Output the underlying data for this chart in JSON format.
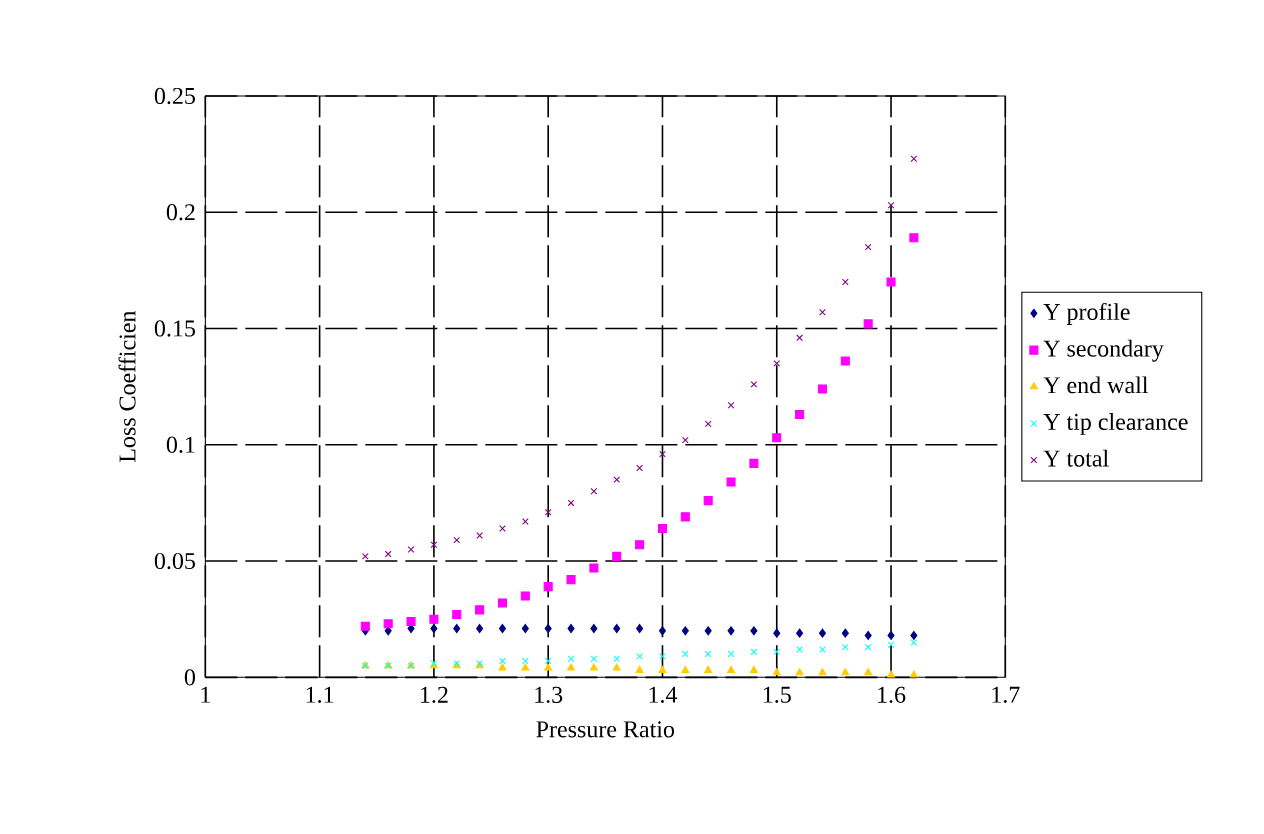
{
  "chart_data": {
    "type": "scatter",
    "xlabel": "Pressure Ratio",
    "ylabel": "Loss Coefficien",
    "x": [
      1.14,
      1.16,
      1.18,
      1.2,
      1.22,
      1.24,
      1.26,
      1.28,
      1.3,
      1.32,
      1.34,
      1.36,
      1.38,
      1.4,
      1.42,
      1.44,
      1.46,
      1.48,
      1.5,
      1.52,
      1.54,
      1.56,
      1.58,
      1.6,
      1.62
    ],
    "series": [
      {
        "name": "Y profile",
        "color": "#000080",
        "marker": "diamond",
        "values": [
          0.02,
          0.02,
          0.021,
          0.021,
          0.021,
          0.021,
          0.021,
          0.021,
          0.021,
          0.021,
          0.021,
          0.021,
          0.021,
          0.02,
          0.02,
          0.02,
          0.02,
          0.02,
          0.019,
          0.019,
          0.019,
          0.019,
          0.018,
          0.018,
          0.018
        ]
      },
      {
        "name": "Y secondary",
        "color": "#ff00ff",
        "marker": "square",
        "values": [
          0.022,
          0.023,
          0.024,
          0.025,
          0.027,
          0.029,
          0.032,
          0.035,
          0.039,
          0.042,
          0.047,
          0.052,
          0.057,
          0.064,
          0.069,
          0.076,
          0.084,
          0.092,
          0.103,
          0.113,
          0.124,
          0.136,
          0.152,
          0.17,
          0.189
        ]
      },
      {
        "name": "Y end wall",
        "color": "#ffcc00",
        "marker": "triangle",
        "values": [
          0.005,
          0.005,
          0.005,
          0.005,
          0.005,
          0.005,
          0.004,
          0.004,
          0.004,
          0.004,
          0.004,
          0.004,
          0.003,
          0.003,
          0.003,
          0.003,
          0.003,
          0.003,
          0.002,
          0.002,
          0.002,
          0.002,
          0.002,
          0.001,
          0.001
        ]
      },
      {
        "name": "Y tip clearance",
        "color": "#00ffff",
        "marker": "cross",
        "values": [
          0.005,
          0.005,
          0.005,
          0.006,
          0.006,
          0.006,
          0.007,
          0.007,
          0.007,
          0.008,
          0.008,
          0.008,
          0.009,
          0.009,
          0.01,
          0.01,
          0.01,
          0.011,
          0.011,
          0.012,
          0.012,
          0.013,
          0.013,
          0.014,
          0.015
        ]
      },
      {
        "name": "Y total",
        "color": "#800080",
        "marker": "cross",
        "values": [
          0.052,
          0.053,
          0.055,
          0.057,
          0.059,
          0.061,
          0.064,
          0.067,
          0.071,
          0.075,
          0.08,
          0.085,
          0.09,
          0.096,
          0.102,
          0.109,
          0.117,
          0.126,
          0.135,
          0.146,
          0.157,
          0.17,
          0.185,
          0.203,
          0.223
        ]
      }
    ],
    "xlim": [
      1,
      1.7
    ],
    "xticks": [
      1,
      1.1,
      1.2,
      1.3,
      1.4,
      1.5,
      1.6,
      1.7
    ],
    "ylim": [
      0,
      0.25
    ],
    "yticks": [
      0,
      0.05,
      0.1,
      0.15,
      0.2,
      0.25
    ],
    "grid": true,
    "legend": "right"
  }
}
